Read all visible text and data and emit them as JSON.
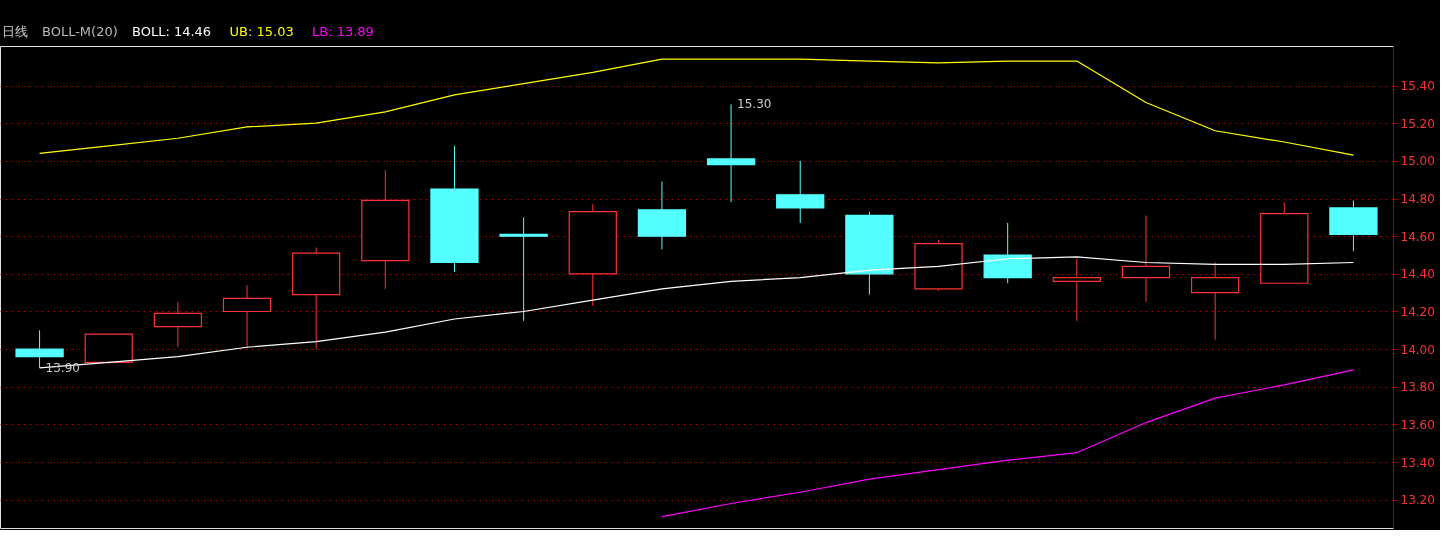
{
  "chart_data": {
    "type": "candlestick",
    "title": "日线",
    "legend_title": "BOLL-M(20)",
    "categories": [
      null,
      null,
      null,
      null,
      null,
      null,
      null,
      null,
      null,
      null,
      null,
      null,
      null,
      null,
      null,
      null,
      null,
      null,
      null,
      null
    ],
    "ohlc": [
      [
        14.0,
        14.1,
        13.9,
        13.96
      ],
      [
        13.93,
        14.08,
        13.92,
        14.08
      ],
      [
        14.12,
        14.25,
        14.01,
        14.19
      ],
      [
        14.2,
        14.34,
        14.01,
        14.27
      ],
      [
        14.29,
        14.54,
        14.0,
        14.51
      ],
      [
        14.47,
        14.95,
        14.32,
        14.79
      ],
      [
        14.85,
        15.08,
        14.41,
        14.46
      ],
      [
        14.61,
        14.7,
        14.15,
        14.6
      ],
      [
        14.4,
        14.77,
        14.23,
        14.73
      ],
      [
        14.74,
        14.89,
        14.53,
        14.6
      ],
      [
        15.01,
        15.3,
        14.78,
        14.98
      ],
      [
        14.82,
        15.0,
        14.67,
        14.75
      ],
      [
        14.71,
        14.73,
        14.29,
        14.4
      ],
      [
        14.32,
        14.58,
        14.31,
        14.56
      ],
      [
        14.5,
        14.67,
        14.35,
        14.38
      ],
      [
        14.36,
        14.48,
        14.15,
        14.38
      ],
      [
        14.38,
        14.71,
        14.25,
        14.44
      ],
      [
        14.3,
        14.46,
        14.05,
        14.38
      ],
      [
        14.35,
        14.78,
        14.35,
        14.72
      ],
      [
        14.75,
        14.79,
        14.52,
        14.61
      ]
    ],
    "colors": [
      "#54ffff",
      "#ff3232",
      "#ff3232",
      "#ff3232",
      "#ff3232",
      "#ff3232",
      "#54ffff",
      "#54ffff",
      "#ff3232",
      "#54ffff",
      "#54ffff",
      "#54ffff",
      "#54ffff",
      "#ff3232",
      "#54ffff",
      "#ff3232",
      "#ff3232",
      "#ff3232",
      "#ff3232",
      "#54ffff"
    ],
    "series": [
      {
        "name": "BOLL: 14.46",
        "type": "line",
        "color": "#ffffff",
        "values": [
          13.9,
          13.93,
          13.96,
          14.01,
          14.04,
          14.09,
          14.16,
          14.2,
          14.26,
          14.32,
          14.36,
          14.38,
          14.42,
          14.44,
          14.48,
          14.49,
          14.46,
          14.45,
          14.45,
          14.46
        ]
      },
      {
        "name": "UB: 15.03",
        "type": "line",
        "color": "#ffff00",
        "values": [
          15.04,
          15.08,
          15.12,
          15.18,
          15.2,
          15.26,
          15.35,
          15.41,
          15.47,
          15.54,
          15.54,
          15.54,
          15.53,
          15.52,
          15.53,
          15.53,
          15.31,
          15.16,
          15.1,
          15.03
        ]
      },
      {
        "name": "LB: 13.89",
        "type": "line",
        "color": "#ff00ff",
        "values": [
          null,
          null,
          null,
          null,
          null,
          null,
          null,
          null,
          null,
          13.11,
          13.18,
          13.24,
          13.31,
          13.36,
          13.41,
          13.45,
          13.61,
          13.74,
          13.81,
          13.89
        ]
      }
    ],
    "ylim": [
      13.05,
      15.61
    ],
    "yticks": [
      {
        "value": 13.2,
        "label": "13.20"
      },
      {
        "value": 13.4,
        "label": "13.40"
      },
      {
        "value": 13.6,
        "label": "13.60"
      },
      {
        "value": 13.8,
        "label": "13.80"
      },
      {
        "value": 14.0,
        "label": "14.00"
      },
      {
        "value": 14.2,
        "label": "14.20"
      },
      {
        "value": 14.4,
        "label": "14.40"
      },
      {
        "value": 14.6,
        "label": "14.60"
      },
      {
        "value": 14.8,
        "label": "14.80"
      },
      {
        "value": 15.0,
        "label": "15.00"
      },
      {
        "value": 15.2,
        "label": "15.20"
      },
      {
        "value": 15.4,
        "label": "15.40"
      }
    ],
    "annotations": [
      "15.30",
      "13.90"
    ],
    "grid": "y",
    "tick_labels": "y",
    "line_style": "solid"
  }
}
